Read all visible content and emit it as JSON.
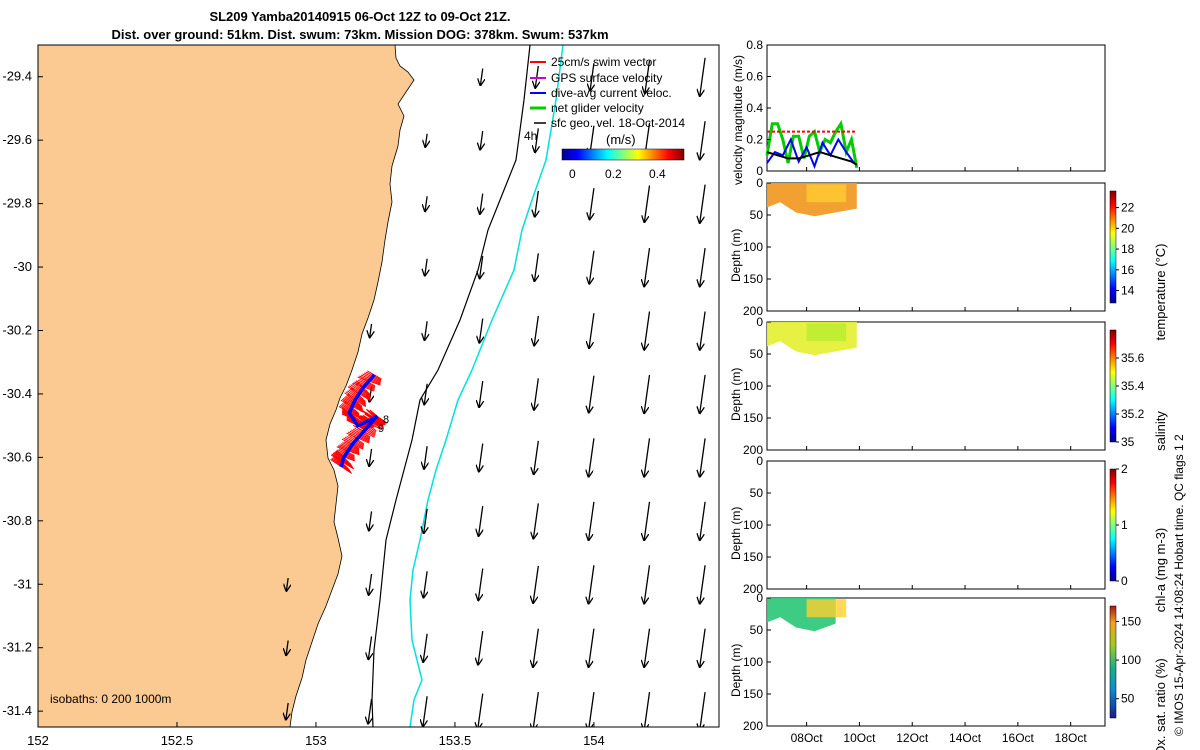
{
  "header": {
    "title_line1": "SL209 Yamba20140915 06-Oct 12Z to 09-Oct 21Z.",
    "title_line2": "Dist. over ground: 51km. Dist. swum: 73km. Mission DOG: 378km. Swum: 537km"
  },
  "colors": {
    "land": "#fbc992",
    "swim_vector": "#ff0000",
    "gps_velocity": "#cc00cc",
    "dive_avg": "#0000ff",
    "net_glider": "#00cc00",
    "sfc_geo": "#000000",
    "isobath_200": "#00e0e0",
    "isobath_1000": "#000000"
  },
  "legend": {
    "items": [
      {
        "label": "25cm/s swim vector",
        "color": "#ff0000"
      },
      {
        "label": "GPS surface velocity",
        "color": "#cc00cc"
      },
      {
        "label": "dive-avg current veloc.",
        "color": "#0000ff"
      },
      {
        "label": "net glider velocity",
        "color": "#00cc00"
      },
      {
        "label": "sfc geo. vel. 18-Oct-2014",
        "color": "#000000"
      }
    ],
    "colorbar_unit": "(m/s)",
    "colorbar_ticks": [
      "0",
      "0.2",
      "0.4"
    ],
    "time_marker": "4h"
  },
  "map_notes": {
    "isobaths_label": "isobaths: 0   200  1000m",
    "track_label_a": "8",
    "track_label_b": "9"
  },
  "credit": "© IMOS 15-Apr-2024 14:08:24 Hobart time. QC flags 1  2",
  "chart_data": [
    {
      "type": "scatter",
      "name": "map",
      "x_ticks": [
        "152",
        "152.5",
        "153",
        "153.5",
        "154"
      ],
      "y_ticks": [
        "-29.4",
        "-29.6",
        "-29.8",
        "-30",
        "-30.2",
        "-30.4",
        "-30.6",
        "-30.8",
        "-31",
        "-31.2",
        "-31.4"
      ],
      "xlim": [
        152.0,
        154.45
      ],
      "ylim": [
        -31.45,
        -29.3
      ],
      "isobaths_m": [
        0,
        200,
        1000
      ],
      "geo_vel_grid": {
        "lons": [
          152.9,
          153.2,
          153.4,
          153.6,
          153.8,
          154.0,
          154.2,
          154.4
        ],
        "lats": [
          -29.4,
          -29.6,
          -29.8,
          -30.0,
          -30.2,
          -30.4,
          -30.6,
          -30.8,
          -31.0,
          -31.2,
          -31.4
        ],
        "note": "southward current, speed increasing offshore"
      },
      "glider_track": [
        [
          153.21,
          -30.34
        ],
        [
          153.17,
          -30.38
        ],
        [
          153.14,
          -30.42
        ],
        [
          153.12,
          -30.46
        ],
        [
          153.15,
          -30.5
        ],
        [
          153.2,
          -30.48
        ],
        [
          153.22,
          -30.47
        ],
        [
          153.17,
          -30.52
        ],
        [
          153.13,
          -30.56
        ],
        [
          153.1,
          -30.6
        ],
        [
          153.09,
          -30.63
        ]
      ]
    },
    {
      "type": "line",
      "name": "velocity",
      "ylabel": "velocity magnitude (m/s)",
      "ylim": [
        0,
        0.8
      ],
      "y_ticks": [
        "0",
        "0.2",
        "0.4",
        "0.6",
        "0.8"
      ],
      "x_ticks": [
        "08Oct",
        "10Oct",
        "12Oct",
        "14Oct",
        "16Oct",
        "18Oct"
      ],
      "xlim": [
        6.5,
        19.3
      ],
      "series": [
        {
          "name": "net glider velocity",
          "color": "#00cc00",
          "x": [
            6.5,
            6.7,
            6.9,
            7.1,
            7.3,
            7.5,
            7.7,
            7.9,
            8.1,
            8.3,
            8.5,
            8.7,
            8.9,
            9.1,
            9.3,
            9.5,
            9.7,
            9.9
          ],
          "y": [
            0.1,
            0.3,
            0.3,
            0.2,
            0.05,
            0.22,
            0.22,
            0.08,
            0.22,
            0.25,
            0.12,
            0.2,
            0.18,
            0.25,
            0.3,
            0.12,
            0.2,
            0.02
          ]
        },
        {
          "name": "dive-avg current veloc.",
          "color": "#0000ff",
          "x": [
            6.5,
            6.8,
            7.1,
            7.4,
            7.7,
            8.0,
            8.3,
            8.6,
            8.9,
            9.2,
            9.5,
            9.8
          ],
          "y": [
            0.05,
            0.12,
            0.1,
            0.2,
            0.06,
            0.15,
            0.03,
            0.18,
            0.1,
            0.2,
            0.12,
            0.05
          ]
        },
        {
          "name": "sfc geo. vel. 18-Oct-2014",
          "color": "#000000",
          "x": [
            6.5,
            6.9,
            7.3,
            7.7,
            8.1,
            8.5,
            8.9,
            9.3,
            9.7,
            9.9
          ],
          "y": [
            0.12,
            0.1,
            0.08,
            0.08,
            0.1,
            0.12,
            0.1,
            0.08,
            0.06,
            0.04
          ]
        },
        {
          "name": "25cm/s swim vector",
          "color": "#ff0000",
          "x": [
            6.5,
            9.9
          ],
          "y": [
            0.25,
            0.25
          ]
        }
      ]
    },
    {
      "type": "heatmap",
      "name": "temperature",
      "ylabel": "Depth (m)",
      "ylim": [
        200,
        0
      ],
      "y_ticks": [
        "0",
        "50",
        "100",
        "150",
        "200"
      ],
      "colorbar_label": "temperature (°C)",
      "colorbar_ticks": [
        "14",
        "16",
        "18",
        "20",
        "22"
      ],
      "clim": [
        12.8,
        23.6
      ],
      "x_range": [
        6.5,
        9.9
      ],
      "fill_value": 21.5
    },
    {
      "type": "heatmap",
      "name": "salinity",
      "ylabel": "Depth (m)",
      "ylim": [
        200,
        0
      ],
      "y_ticks": [
        "0",
        "50",
        "100",
        "150",
        "200"
      ],
      "colorbar_label": "salinity",
      "colorbar_ticks": [
        "35",
        "35.2",
        "35.4",
        "35.6"
      ],
      "clim": [
        35.0,
        35.8
      ],
      "x_range": [
        6.5,
        9.9
      ],
      "fill_value": 35.45
    },
    {
      "type": "heatmap",
      "name": "chl-a",
      "ylabel": "Depth (m)",
      "ylim": [
        200,
        0
      ],
      "y_ticks": [
        "0",
        "50",
        "100",
        "150",
        "200"
      ],
      "colorbar_label": "chl-a (mg m-3)",
      "colorbar_ticks": [
        "0",
        "1",
        "2"
      ],
      "clim": [
        0,
        2
      ],
      "x_range": null
    },
    {
      "type": "heatmap",
      "name": "oxygen",
      "ylabel": "Depth (m)",
      "ylim": [
        200,
        0
      ],
      "y_ticks": [
        "0",
        "50",
        "100",
        "150",
        "200"
      ],
      "colorbar_label": "Ox. sat. ratio (%)",
      "colorbar_ticks": [
        "50",
        "100",
        "150"
      ],
      "clim": [
        25,
        170
      ],
      "x_range": [
        6.5,
        9.1
      ],
      "fill_value": 95
    }
  ]
}
